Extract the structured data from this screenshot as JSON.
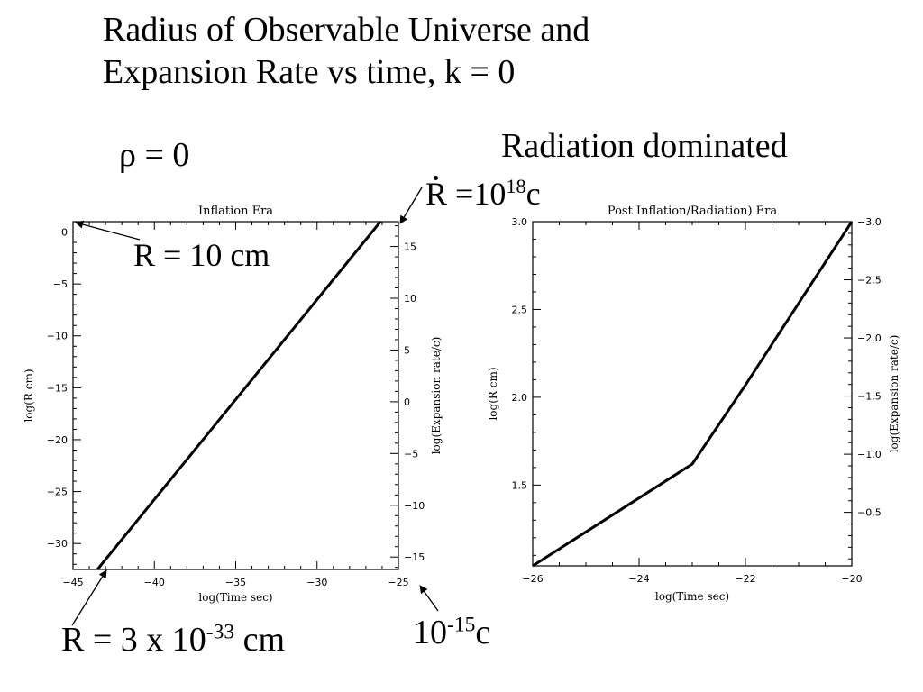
{
  "slide": {
    "title_line1": "Radius of Observable Universe and",
    "title_line2": "Expansion Rate vs time, k = 0",
    "rho_label": "ρ = 0",
    "radiation_label": "Radiation dominated",
    "rdot_base": "R",
    "rdot_mid": " =10",
    "rdot_exp": "18",
    "rdot_unit": "c",
    "r10_label": "R = 10 cm",
    "rsmall_base": "R = 3 x 10",
    "rsmall_exp": "-33",
    "rsmall_unit": " cm",
    "rate_base": "10",
    "rate_exp": "-15",
    "rate_unit": "c"
  },
  "chart_data": [
    {
      "type": "line",
      "title": "Inflation Era",
      "xlabel": "log(Time sec)",
      "ylabel": "log(R cm)",
      "ylabel_right": "log(Expansion rate/c)",
      "xlim": [
        -45,
        -25
      ],
      "ylim": [
        -32.5,
        1
      ],
      "ylim_right": [
        -16.2,
        17.4
      ],
      "xticks": [
        -45,
        -40,
        -35,
        -30,
        -25
      ],
      "yticks": [
        0,
        -5,
        -10,
        -15,
        -20,
        -25,
        -30
      ],
      "yticks_right": [
        15,
        10,
        5,
        0,
        -5,
        -10,
        -15
      ],
      "series": [
        {
          "x": [
            -43.5,
            -26.1
          ],
          "y": [
            -32.5,
            1
          ]
        }
      ]
    },
    {
      "type": "line",
      "title": "Post Inflation/Radiation) Era",
      "xlabel": "log(Time sec)",
      "ylabel": "log(R cm)",
      "ylabel_right": "log(Expansion rate/c)",
      "xlim": [
        -26,
        -20
      ],
      "ylim": [
        1.04,
        3.0
      ],
      "ylim_right": [
        -0.04,
        -3.0
      ],
      "xticks": [
        -26,
        -24,
        -22,
        -20
      ],
      "yticks": [
        3.0,
        2.5,
        2.0,
        1.5
      ],
      "yticks_right": [
        -3.0,
        -2.5,
        -2.0,
        -1.5,
        -1.0,
        -0.5
      ],
      "series": [
        {
          "x": [
            -26,
            -23,
            -22,
            -20
          ],
          "y": [
            1.04,
            1.62,
            2.07,
            3.0
          ]
        }
      ]
    }
  ]
}
